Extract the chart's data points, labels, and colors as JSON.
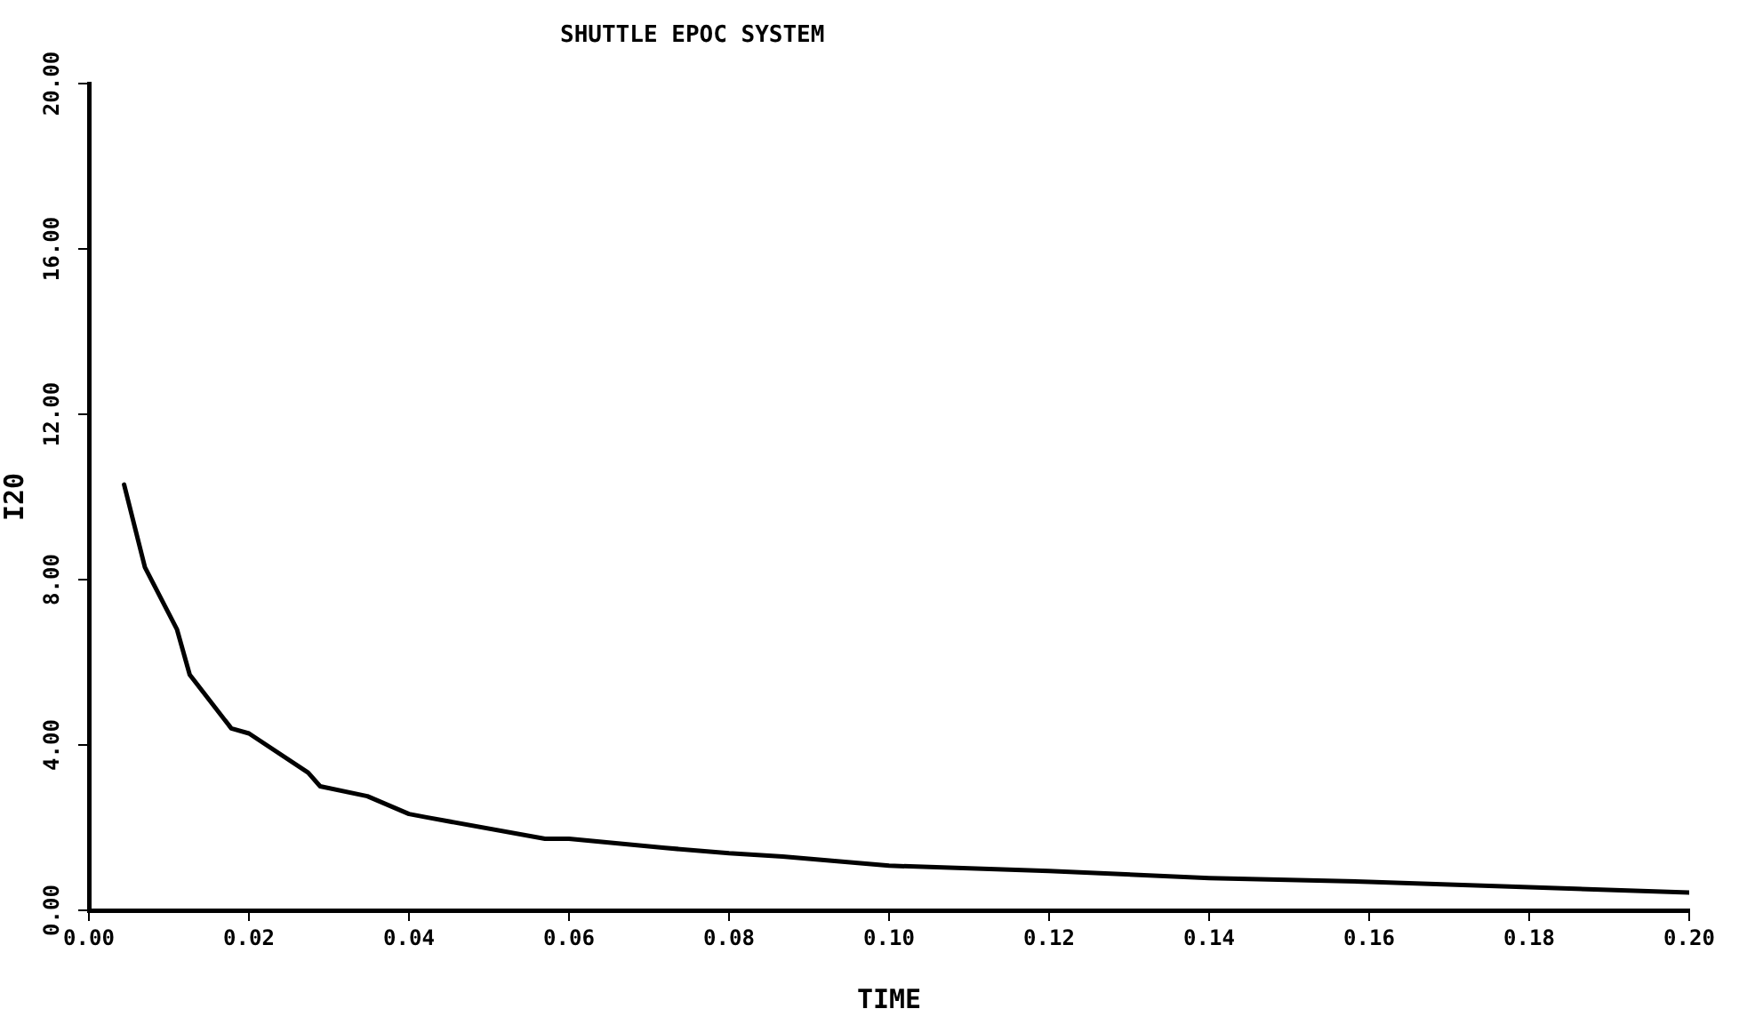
{
  "chart_data": {
    "type": "line",
    "title": "SHUTTLE EPOC SYSTEM",
    "xlabel": "TIME",
    "ylabel": "I20",
    "series": [
      {
        "color": "#000000",
        "x": [
          0.0044,
          0.007,
          0.011,
          0.0126,
          0.0178,
          0.02,
          0.0274,
          0.0289,
          0.0348,
          0.04,
          0.0422,
          0.057,
          0.06,
          0.072,
          0.08,
          0.0867,
          0.1,
          0.12,
          0.14,
          0.16,
          0.18,
          0.2
        ],
        "values": [
          10.3,
          8.3,
          6.8,
          5.7,
          4.4,
          4.28,
          3.33,
          3.0,
          2.76,
          2.33,
          2.25,
          1.73,
          1.73,
          1.51,
          1.38,
          1.3,
          1.08,
          0.95,
          0.78,
          0.69,
          0.56,
          0.43
        ]
      }
    ],
    "xlim": [
      0,
      0.2
    ],
    "xticks": [
      {
        "value": 0,
        "label": "0.00"
      },
      {
        "value": 0.02,
        "label": "0.02"
      },
      {
        "value": 0.04,
        "label": "0.04"
      },
      {
        "value": 0.06,
        "label": "0.06"
      },
      {
        "value": 0.08,
        "label": "0.08"
      },
      {
        "value": 0.1,
        "label": "0.10"
      },
      {
        "value": 0.12,
        "label": "0.12"
      },
      {
        "value": 0.14,
        "label": "0.14"
      },
      {
        "value": 0.16,
        "label": "0.16"
      },
      {
        "value": 0.18,
        "label": "0.18"
      },
      {
        "value": 0.2,
        "label": "0.20"
      }
    ],
    "ylim": [
      0,
      20
    ],
    "yticks": [
      {
        "value": 0,
        "label": "0.00"
      },
      {
        "value": 4,
        "label": "4.00"
      },
      {
        "value": 8,
        "label": "8.00"
      },
      {
        "value": 12,
        "label": "12.00"
      },
      {
        "value": 16,
        "label": "16.00"
      },
      {
        "value": 20,
        "label": "20.00"
      }
    ],
    "grid": false,
    "legend": false,
    "marker": "none",
    "line_style": "solid"
  }
}
